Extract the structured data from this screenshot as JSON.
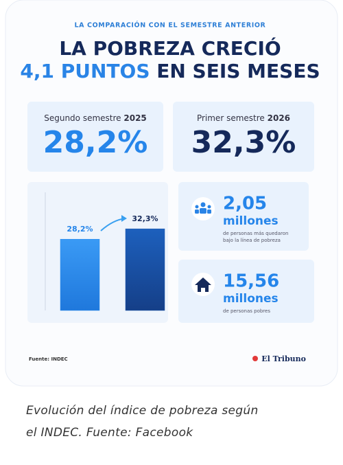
{
  "header": {
    "kicker": "LA COMPARACIÓN CON EL SEMESTRE ANTERIOR",
    "title_line1": "LA POBREZA CRECIÓ",
    "title_highlight": "4,1 PUNTOS",
    "title_rest": "EN SEIS MESES"
  },
  "comparison": [
    {
      "label": "Segundo semestre",
      "period": "2025",
      "value": "28,2%"
    },
    {
      "label": "Primer semestre",
      "period": "2026",
      "value": "32,3%"
    }
  ],
  "chart_data": {
    "type": "bar",
    "categories": [
      null,
      null
    ],
    "values": [
      28.2,
      32.3
    ],
    "value_labels": [
      "28,2%",
      "32,3%"
    ],
    "colors": [
      "#2a8cec",
      "#1a57ad"
    ]
  },
  "stats": [
    {
      "value": "2,05",
      "unit": "millones",
      "note": [
        "de personas más quedaron",
        "bajo la línea de pobreza"
      ]
    },
    {
      "value": "15,56",
      "unit": "millones",
      "note": [
        "de personas pobres"
      ]
    }
  ],
  "footer": {
    "source": "Fuente: INDEC",
    "brand": "El Tribuno"
  },
  "caption": [
    "Evolución del índice de pobreza según",
    "el INDEC. Fuente: Facebook"
  ]
}
